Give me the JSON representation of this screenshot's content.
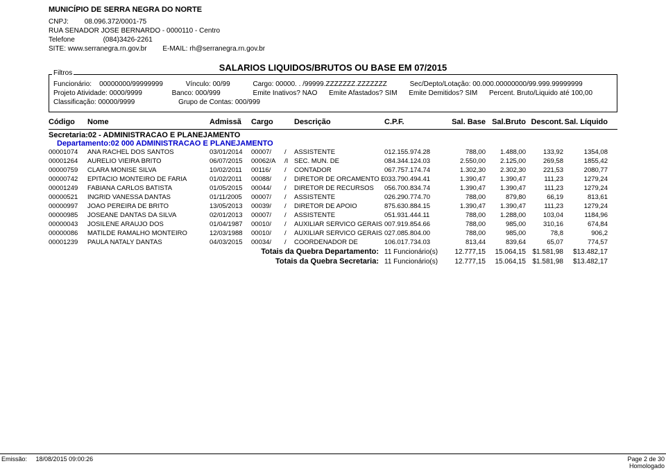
{
  "header": {
    "municipio": "MUNICÍPIO DE SERRA NEGRA DO NORTE",
    "cnpj_label": "CNPJ:",
    "cnpj": "08.096.372/0001-75",
    "endereco": "RUA SENADOR JOSE BERNARDO - 0000110 - Centro",
    "telefone_label": "Telefone",
    "telefone": "(084)3426-2261",
    "site_label": "SITE:",
    "site": "www.serranegra.rn.gov.br",
    "email_label": "E-MAIL:",
    "email": "rh@serranegra.rn.gov.br"
  },
  "report_title": "SALARIOS LIQUIDOS/BRUTOS OU BASE EM 07/2015",
  "filtros": {
    "legend": "Filtros",
    "row1": {
      "funcionario_label": "Funcionário:",
      "funcionario_val": "00000000/99999999",
      "vinculo_label": "Vínculo:",
      "vinculo_val": "00/99",
      "cargo_label": "Cargo:",
      "cargo_val": "00000.    .       /99999.ZZZZZZZ.ZZZZZZZ",
      "sec_label": "Sec/Depto/Lotação:",
      "sec_val": "00.000.00000000/99.999.99999999"
    },
    "row2": {
      "projeto_label": "Projeto Atividade:",
      "projeto_val": "0000/9999",
      "banco_label": "Banco:",
      "banco_val": "000/999",
      "inativos_label": "Emite Inativos?",
      "inativos_val": "NAO",
      "afastados_label": "Emite Afastados?",
      "afastados_val": "SIM",
      "demitidos_label": "Emite Demitidos?",
      "demitidos_val": "SIM",
      "percent_label": "Percent. Bruto/Liquido até",
      "percent_val": "100,00"
    },
    "row3": {
      "class_label": "Classificação:",
      "class_val": "00000/9999",
      "grupo_label": "Grupo de Contas:",
      "grupo_val": "000/999"
    }
  },
  "thead": {
    "codigo": "Código",
    "nome": "Nome",
    "admissa": "Admissã",
    "cargo": "Cargo",
    "descricao": "Descrição",
    "cpf": "C.P.F.",
    "base": "Sal. Base",
    "bruto": "Sal.Bruto",
    "descont": "Descont.",
    "liquido": "Sal. Líquido"
  },
  "secretaria": "Secretaria:02 - ADMINISTRACAO E PLANEJAMENTO",
  "departamento": "Departamento:02 000 ADMINISTRACAO E PLANEJAMENTO",
  "rows": [
    {
      "cod": "00001074",
      "nome": "ANA RACHEL DOS SANTOS",
      "adm": "03/01/2014",
      "cargo": "00007/",
      "sl": "/",
      "desc": "ASSISTENTE",
      "cpf": "012.155.974.28",
      "base": "788,00",
      "bruto": "1.488,00",
      "dsc": "133,92",
      "liq": "1354,08"
    },
    {
      "cod": "00001264",
      "nome": "AURELIO VIEIRA BRITO",
      "adm": "06/07/2015",
      "cargo": "00062/A",
      "sl": "/I",
      "desc": "SEC. MUN. DE",
      "cpf": "084.344.124.03",
      "base": "2.550,00",
      "bruto": "2.125,00",
      "dsc": "269,58",
      "liq": "1855,42"
    },
    {
      "cod": "00000759",
      "nome": "CLARA MONISE SILVA",
      "adm": "10/02/2011",
      "cargo": "00116/",
      "sl": "/",
      "desc": "CONTADOR",
      "cpf": "067.757.174.74",
      "base": "1.302,30",
      "bruto": "2.302,30",
      "dsc": "221,53",
      "liq": "2080,77"
    },
    {
      "cod": "00000742",
      "nome": "EPITACIO MONTEIRO DE FARIA",
      "adm": "01/02/2011",
      "cargo": "00088/",
      "sl": "/",
      "desc": "DIRETOR DE ORCAMENTO E",
      "cpf": "033.790.494.41",
      "base": "1.390,47",
      "bruto": "1.390,47",
      "dsc": "111,23",
      "liq": "1279,24"
    },
    {
      "cod": "00001249",
      "nome": "FABIANA CARLOS BATISTA",
      "adm": "01/05/2015",
      "cargo": "00044/",
      "sl": "/",
      "desc": "DIRETOR DE RECURSOS",
      "cpf": "056.700.834.74",
      "base": "1.390,47",
      "bruto": "1.390,47",
      "dsc": "111,23",
      "liq": "1279,24"
    },
    {
      "cod": "00000521",
      "nome": "INGRID VANESSA DANTAS",
      "adm": "01/11/2005",
      "cargo": "00007/",
      "sl": "/",
      "desc": "ASSISTENTE",
      "cpf": "026.290.774.70",
      "base": "788,00",
      "bruto": "879,80",
      "dsc": "66,19",
      "liq": "813,61"
    },
    {
      "cod": "00000997",
      "nome": "JOAO PEREIRA DE BRITO",
      "adm": "13/05/2013",
      "cargo": "00039/",
      "sl": "/",
      "desc": "DIRETOR DE APOIO",
      "cpf": "875.630.884.15",
      "base": "1.390,47",
      "bruto": "1.390,47",
      "dsc": "111,23",
      "liq": "1279,24"
    },
    {
      "cod": "00000985",
      "nome": "JOSEANE DANTAS DA SILVA",
      "adm": "02/01/2013",
      "cargo": "00007/",
      "sl": "/",
      "desc": "ASSISTENTE",
      "cpf": "051.931.444.11",
      "base": "788,00",
      "bruto": "1.288,00",
      "dsc": "103,04",
      "liq": "1184,96"
    },
    {
      "cod": "00000043",
      "nome": "JOSILENE ARAUJO DOS",
      "adm": "01/04/1987",
      "cargo": "00010/",
      "sl": "/",
      "desc": "AUXILIAR SERVICO GERAIS",
      "cpf": "007.919.854.66",
      "base": "788,00",
      "bruto": "985,00",
      "dsc": "310,16",
      "liq": "674,84"
    },
    {
      "cod": "00000086",
      "nome": "MATILDE RAMALHO MONTEIRO",
      "adm": "12/03/1988",
      "cargo": "00010/",
      "sl": "/",
      "desc": "AUXILIAR SERVICO GERAIS",
      "cpf": "027.085.804.00",
      "base": "788,00",
      "bruto": "985,00",
      "dsc": "78,8",
      "liq": "906,2"
    },
    {
      "cod": "00001239",
      "nome": "PAULA NATALY DANTAS",
      "adm": "04/03/2015",
      "cargo": "00034/",
      "sl": "/",
      "desc": "COORDENADOR DE",
      "cpf": "106.017.734.03",
      "base": "813,44",
      "bruto": "839,64",
      "dsc": "65,07",
      "liq": "774,57"
    }
  ],
  "totals": {
    "dept_label": "Totais da Quebra Departamento:",
    "sec_label": "Totais da Quebra Secretaria:",
    "func": "11 Funcionário(s)",
    "base": "12.777,15",
    "bruto": "15.064,15",
    "dsc": "$1.581,98",
    "liq": "$13.482,17"
  },
  "footer": {
    "emissao_label": "Emissão:",
    "emissao_val": "18/08/2015 09:00:26",
    "page": "Page 2 de 30",
    "status": "Homologado"
  }
}
